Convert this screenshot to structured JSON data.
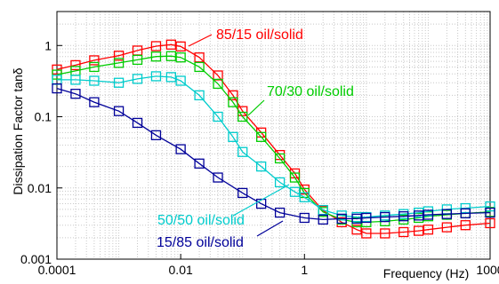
{
  "chart_data": {
    "type": "line",
    "x_scale": "log",
    "y_scale": "log",
    "xlim": [
      0.0001,
      1000
    ],
    "ylim": [
      0.001,
      3
    ],
    "xlabel": "Frequency (Hz)",
    "ylabel": "Dissipation Factor tanδ",
    "grid": true,
    "x_ticks": [
      {
        "value": 0.0001,
        "label": "0.0001"
      },
      {
        "value": 0.01,
        "label": "0.01"
      },
      {
        "value": 1,
        "label": "1"
      },
      {
        "value": 1000,
        "label": "1000"
      }
    ],
    "y_ticks": [
      {
        "value": 0.001,
        "label": "0.001"
      },
      {
        "value": 0.01,
        "label": "0.01"
      },
      {
        "value": 0.1,
        "label": "0.1"
      },
      {
        "value": 1,
        "label": "1"
      }
    ],
    "series": [
      {
        "name": "85/15 oil/solid",
        "color": "#ff0000",
        "points": [
          [
            0.0001,
            0.46
          ],
          [
            0.0002,
            0.53
          ],
          [
            0.0004,
            0.62
          ],
          [
            0.001,
            0.72
          ],
          [
            0.002,
            0.85
          ],
          [
            0.004,
            0.98
          ],
          [
            0.007,
            1.03
          ],
          [
            0.01,
            0.97
          ],
          [
            0.02,
            0.68
          ],
          [
            0.04,
            0.38
          ],
          [
            0.07,
            0.2
          ],
          [
            0.1,
            0.12
          ],
          [
            0.2,
            0.06
          ],
          [
            0.4,
            0.029
          ],
          [
            0.7,
            0.016
          ],
          [
            1,
            0.0095
          ],
          [
            2,
            0.0048
          ],
          [
            4,
            0.0033
          ],
          [
            7,
            0.0026
          ],
          [
            10,
            0.0023
          ],
          [
            20,
            0.0023
          ],
          [
            40,
            0.0024
          ],
          [
            70,
            0.0025
          ],
          [
            100,
            0.0026
          ],
          [
            200,
            0.0028
          ],
          [
            400,
            0.003
          ],
          [
            1000,
            0.0032
          ]
        ]
      },
      {
        "name": "70/30 oil/solid",
        "color": "#00cc00",
        "points": [
          [
            0.0001,
            0.39
          ],
          [
            0.0002,
            0.44
          ],
          [
            0.0004,
            0.5
          ],
          [
            0.001,
            0.57
          ],
          [
            0.002,
            0.63
          ],
          [
            0.004,
            0.7
          ],
          [
            0.007,
            0.71
          ],
          [
            0.01,
            0.68
          ],
          [
            0.02,
            0.5
          ],
          [
            0.04,
            0.29
          ],
          [
            0.07,
            0.16
          ],
          [
            0.1,
            0.1
          ],
          [
            0.2,
            0.052
          ],
          [
            0.4,
            0.026
          ],
          [
            0.7,
            0.014
          ],
          [
            1,
            0.0085
          ],
          [
            2,
            0.0046
          ],
          [
            4,
            0.0036
          ],
          [
            7,
            0.0033
          ],
          [
            10,
            0.0033
          ],
          [
            20,
            0.0034
          ],
          [
            40,
            0.0036
          ],
          [
            70,
            0.0038
          ],
          [
            100,
            0.004
          ],
          [
            200,
            0.0042
          ],
          [
            400,
            0.0044
          ],
          [
            1000,
            0.0046
          ]
        ]
      },
      {
        "name": "50/50 oil/solid",
        "color": "#00cccc",
        "points": [
          [
            0.0001,
            0.33
          ],
          [
            0.0002,
            0.33
          ],
          [
            0.0004,
            0.32
          ],
          [
            0.001,
            0.3
          ],
          [
            0.002,
            0.34
          ],
          [
            0.004,
            0.37
          ],
          [
            0.007,
            0.36
          ],
          [
            0.01,
            0.32
          ],
          [
            0.02,
            0.2
          ],
          [
            0.04,
            0.1
          ],
          [
            0.07,
            0.052
          ],
          [
            0.1,
            0.032
          ],
          [
            0.2,
            0.02
          ],
          [
            0.4,
            0.012
          ],
          [
            0.7,
            0.0088
          ],
          [
            1,
            0.0074
          ],
          [
            2,
            0.0049
          ],
          [
            4,
            0.0041
          ],
          [
            7,
            0.0039
          ],
          [
            10,
            0.0039
          ],
          [
            20,
            0.0041
          ],
          [
            40,
            0.0043
          ],
          [
            70,
            0.0045
          ],
          [
            100,
            0.0047
          ],
          [
            200,
            0.005
          ],
          [
            400,
            0.0052
          ],
          [
            1000,
            0.0055
          ]
        ]
      },
      {
        "name": "15/85 oil/solid",
        "color": "#000099",
        "points": [
          [
            0.0001,
            0.25
          ],
          [
            0.0002,
            0.21
          ],
          [
            0.0004,
            0.16
          ],
          [
            0.001,
            0.12
          ],
          [
            0.002,
            0.082
          ],
          [
            0.004,
            0.055
          ],
          [
            0.01,
            0.035
          ],
          [
            0.02,
            0.022
          ],
          [
            0.04,
            0.014
          ],
          [
            0.1,
            0.0085
          ],
          [
            0.2,
            0.006
          ],
          [
            0.4,
            0.0045
          ],
          [
            1,
            0.0038
          ],
          [
            2,
            0.0036
          ],
          [
            4,
            0.0037
          ],
          [
            7,
            0.0037
          ],
          [
            10,
            0.0038
          ],
          [
            20,
            0.0039
          ],
          [
            40,
            0.004
          ],
          [
            70,
            0.0041
          ],
          [
            100,
            0.0042
          ],
          [
            200,
            0.0043
          ],
          [
            400,
            0.0044
          ],
          [
            1000,
            0.0045
          ]
        ]
      }
    ],
    "annotations": [
      {
        "text": "85/15 oil/solid",
        "series": 0
      },
      {
        "text": "70/30 oil/solid",
        "series": 1
      },
      {
        "text": "50/50 oil/solid",
        "series": 2
      },
      {
        "text": "15/85 oil/solid",
        "series": 3
      }
    ]
  }
}
